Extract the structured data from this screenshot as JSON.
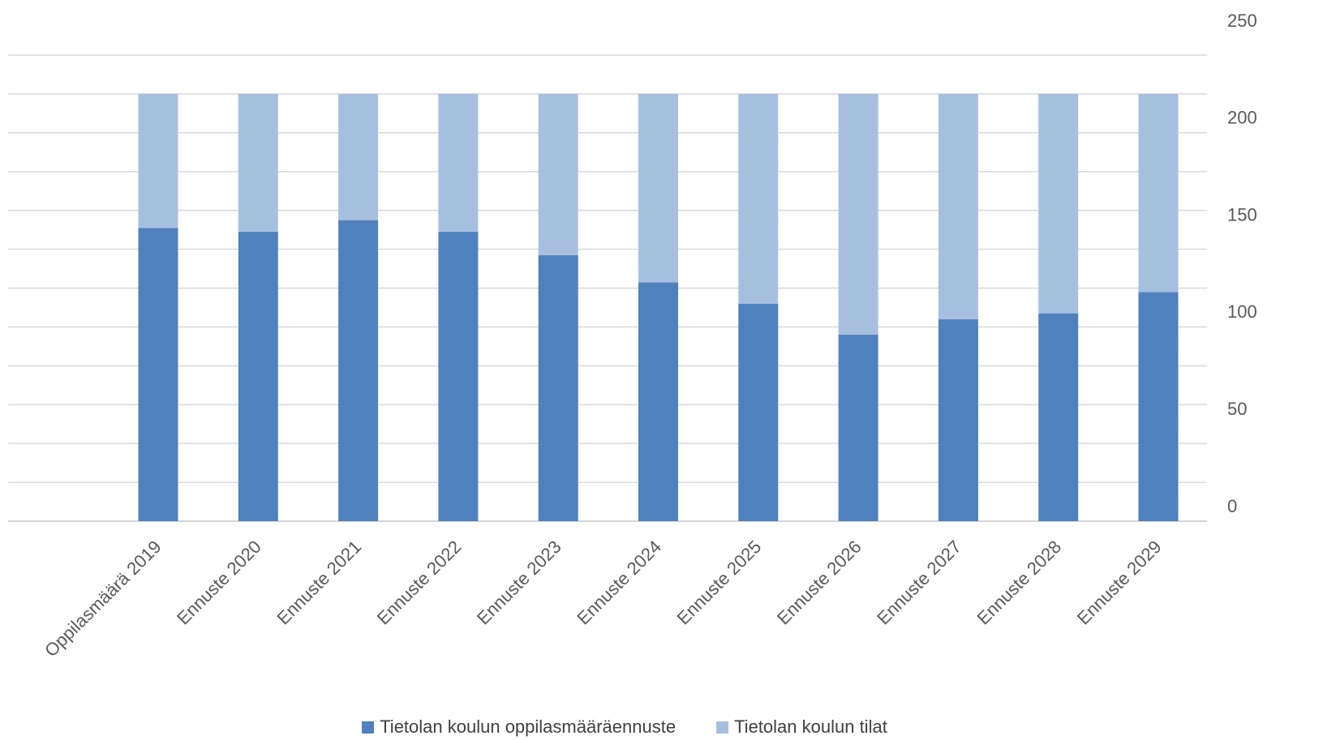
{
  "chart_data": {
    "type": "bar",
    "stacked": true,
    "categories": [
      "Oppilasmäärä 2019",
      "Ennuste 2020",
      "Ennuste 2021",
      "Ennuste 2022",
      "Ennuste 2023",
      "Ennuste 2024",
      "Ennuste 2025",
      "Ennuste 2026",
      "Ennuste 2027",
      "Ennuste 2028",
      "Ennuste 2029"
    ],
    "series": [
      {
        "name": "Tietolan koulun oppilasmääräennuste",
        "color": "#4f81bd",
        "values": [
          151,
          149,
          155,
          149,
          137,
          123,
          112,
          96,
          104,
          107,
          118
        ]
      },
      {
        "name": "Tietolan koulun tilat",
        "color": "#a7bfdf",
        "values": [
          69,
          71,
          65,
          71,
          83,
          97,
          108,
          124,
          116,
          113,
          102
        ]
      }
    ],
    "stack_total": 220,
    "y_axis": {
      "position": "right",
      "ylim": [
        0,
        250
      ],
      "ticks": [
        0,
        50,
        100,
        150,
        200,
        250
      ],
      "gridlines_every": 20
    },
    "grid": true,
    "legend_position": "bottom"
  }
}
